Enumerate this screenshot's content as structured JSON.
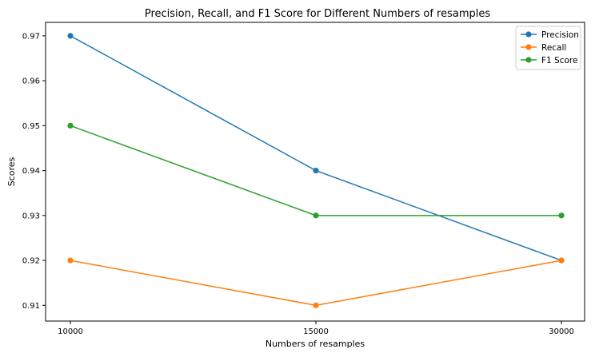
{
  "chart_data": {
    "type": "line",
    "title": "Precision, Recall, and F1 Score for Different Numbers of resamples",
    "xlabel": "Numbers of resamples",
    "ylabel": "Scores",
    "categories": [
      "10000",
      "15000",
      "30000"
    ],
    "y_ticks": [
      "0.91",
      "0.92",
      "0.93",
      "0.94",
      "0.95",
      "0.96",
      "0.97"
    ],
    "y_tick_values": [
      0.91,
      0.92,
      0.93,
      0.94,
      0.95,
      0.96,
      0.97
    ],
    "ylim": [
      0.9065,
      0.973
    ],
    "grid": false,
    "legend_position": "top-right",
    "series": [
      {
        "name": "Precision",
        "color": "#1f77b4",
        "values": [
          0.97,
          0.94,
          0.92
        ]
      },
      {
        "name": "Recall",
        "color": "#ff7f0e",
        "values": [
          0.92,
          0.91,
          0.92
        ]
      },
      {
        "name": "F1 Score",
        "color": "#2ca02c",
        "values": [
          0.95,
          0.93,
          0.93
        ]
      }
    ]
  }
}
